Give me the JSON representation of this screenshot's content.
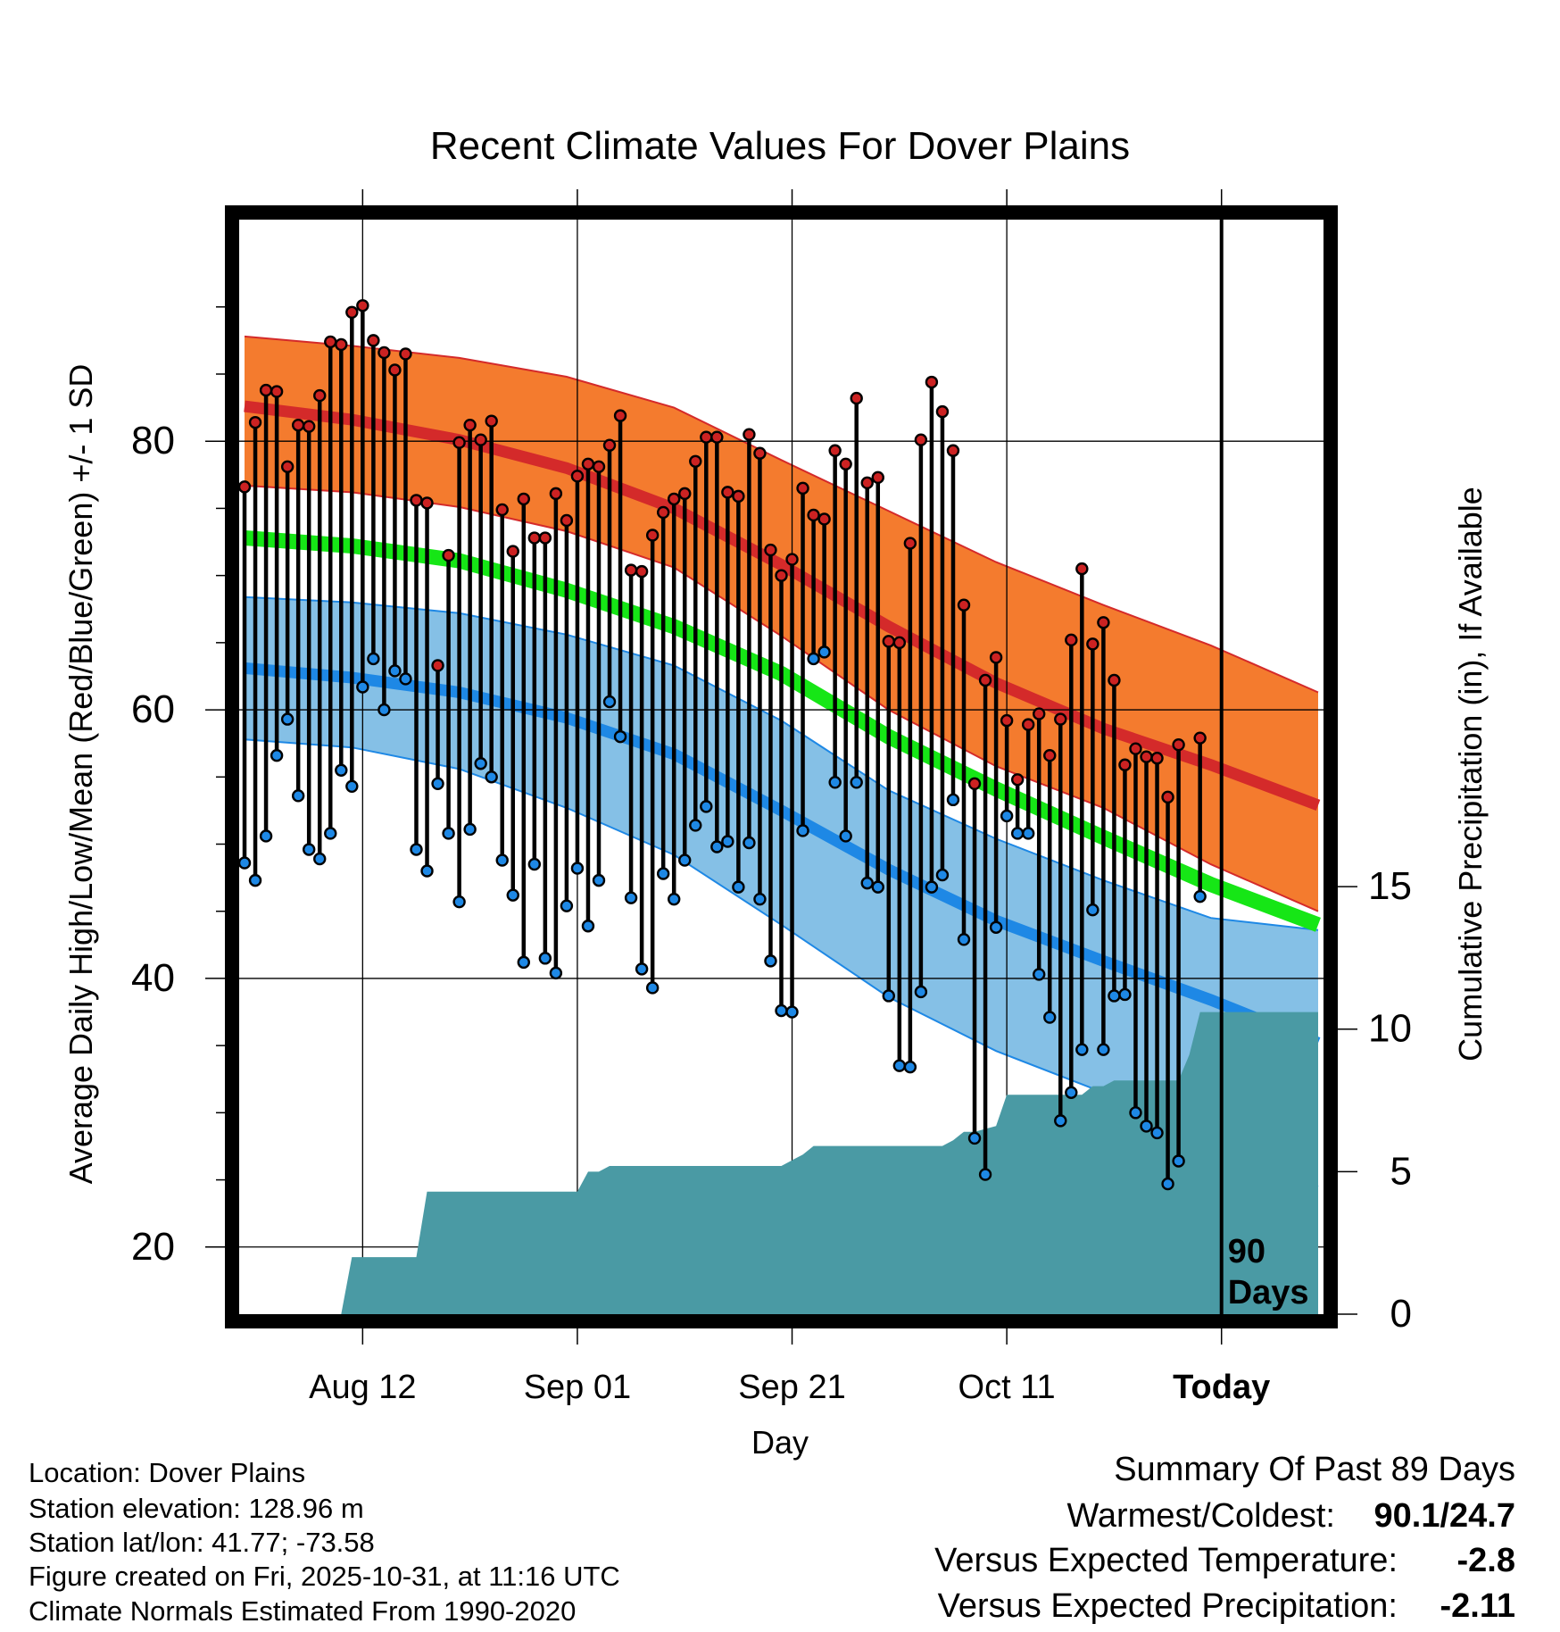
{
  "chart_data": {
    "type": "line",
    "title": "Recent Climate Values For Dover Plains",
    "xlabel": "Day",
    "ylabel_left": "Average Daily High/Low/Mean (Red/Blue/Green) +/- 1 SD",
    "ylabel_right": "Cumulative Precipitation (in), If Available",
    "x_ticks": [
      "Aug 12",
      "Sep 01",
      "Sep 21",
      "Oct 11",
      "Today"
    ],
    "x_tick_days": [
      12,
      32,
      52,
      72,
      92
    ],
    "x_range": [
      0.5,
      101.5
    ],
    "today_day": 92,
    "days_label": "90\nDays",
    "y_left_ticks": [
      20,
      40,
      60,
      80
    ],
    "y_left_range": [
      15,
      96.5
    ],
    "y_right_ticks": [
      0,
      5,
      10,
      15
    ],
    "y_right_range": [
      0,
      38.4
    ],
    "normals": {
      "days": [
        1,
        11,
        21,
        31,
        41,
        51,
        61,
        71,
        81,
        91,
        101
      ],
      "high_mean": [
        82.6,
        81.6,
        80.1,
        78.0,
        75.0,
        70.8,
        66.2,
        62.0,
        58.6,
        55.9,
        52.9
      ],
      "high_upper": [
        87.8,
        87.1,
        86.2,
        84.8,
        82.5,
        78.6,
        74.8,
        71.0,
        67.8,
        64.8,
        61.3
      ],
      "high_lower": [
        76.7,
        76.2,
        75.1,
        73.3,
        70.6,
        65.5,
        60.0,
        55.8,
        52.7,
        48.5,
        45.0
      ],
      "mean": [
        72.8,
        72.2,
        71.1,
        68.9,
        66.2,
        62.7,
        58.0,
        54.1,
        50.5,
        47.0,
        44.0
      ],
      "low_mean": [
        63.1,
        62.4,
        61.3,
        59.4,
        56.7,
        52.5,
        48.1,
        44.3,
        41.3,
        38.4,
        35.2
      ],
      "low_upper": [
        68.4,
        68.0,
        67.2,
        65.6,
        63.3,
        59.2,
        54.0,
        50.4,
        47.3,
        44.5,
        43.6
      ],
      "low_lower": [
        57.8,
        57.2,
        55.6,
        52.7,
        49.2,
        44.0,
        38.6,
        34.6,
        31.5,
        27.8,
        24.5
      ]
    },
    "series": [
      {
        "name": "Daily High",
        "color": "#cc2222",
        "start_day": 1,
        "values": [
          76.6,
          81.4,
          83.8,
          83.7,
          78.1,
          81.2,
          81.1,
          83.4,
          87.4,
          87.2,
          89.6,
          90.1,
          87.5,
          86.6,
          85.3,
          86.5,
          75.6,
          75.4,
          63.3,
          71.5,
          79.9,
          81.2,
          80.1,
          81.5,
          74.9,
          71.8,
          75.7,
          72.8,
          72.8,
          76.1,
          74.1,
          77.4,
          78.3,
          78.1,
          79.7,
          81.9,
          70.4,
          70.3,
          73.0,
          74.7,
          75.7,
          76.1,
          78.5,
          80.3,
          80.3,
          76.2,
          75.9,
          80.5,
          79.1,
          71.9,
          70.0,
          71.2,
          76.5,
          74.5,
          74.2,
          79.3,
          78.3,
          83.2,
          76.9,
          77.3,
          65.1,
          65.0,
          72.4,
          80.1,
          84.4,
          82.2,
          79.3,
          67.8,
          54.5,
          62.2,
          63.9,
          59.2,
          54.8,
          58.9,
          59.7,
          56.6,
          59.3,
          65.2,
          70.5,
          64.9,
          66.5,
          62.2,
          55.9,
          57.1,
          56.5,
          56.4,
          53.5,
          57.4,
          null,
          57.9
        ]
      },
      {
        "name": "Daily Low",
        "color": "#1e88e5",
        "start_day": 1,
        "values": [
          48.6,
          47.3,
          50.6,
          56.6,
          59.3,
          53.6,
          49.6,
          48.9,
          50.8,
          55.5,
          54.3,
          61.7,
          63.8,
          60.0,
          62.9,
          62.3,
          49.6,
          48.0,
          54.5,
          50.8,
          45.7,
          51.1,
          56.0,
          55.0,
          48.8,
          46.2,
          41.2,
          48.5,
          41.5,
          40.4,
          45.4,
          48.2,
          43.9,
          47.3,
          60.6,
          58.0,
          46.0,
          40.7,
          39.3,
          47.8,
          45.9,
          48.8,
          51.4,
          52.8,
          49.8,
          50.2,
          46.8,
          50.1,
          45.9,
          41.3,
          37.6,
          37.5,
          51.0,
          63.8,
          64.3,
          54.6,
          50.6,
          54.6,
          47.1,
          46.8,
          38.7,
          33.5,
          33.4,
          39.0,
          46.8,
          47.7,
          53.3,
          42.9,
          28.1,
          25.4,
          43.8,
          52.1,
          50.8,
          50.8,
          40.3,
          37.1,
          29.4,
          31.5,
          34.7,
          45.1,
          34.7,
          38.7,
          38.8,
          30.0,
          29.0,
          28.5,
          24.7,
          26.4,
          null,
          46.1
        ]
      },
      {
        "name": "Cumulative Precipitation",
        "color": "#4a9aa4",
        "days": [
          10,
          11,
          12,
          17,
          18,
          19,
          31,
          32,
          33,
          34,
          35,
          50,
          51,
          52,
          53,
          54,
          66,
          67,
          68,
          69,
          70,
          71,
          72,
          73,
          74,
          75,
          76,
          77,
          78,
          79,
          80,
          81,
          82,
          83,
          84,
          85,
          86,
          87,
          88,
          89,
          90,
          91,
          92,
          101
        ],
        "values": [
          0,
          2.0,
          2.0,
          2.0,
          4.3,
          4.3,
          4.3,
          4.3,
          5.0,
          5.0,
          5.2,
          5.2,
          5.2,
          5.4,
          5.6,
          5.9,
          5.9,
          6.1,
          6.4,
          6.4,
          6.5,
          6.6,
          7.7,
          7.7,
          7.7,
          7.7,
          7.7,
          7.7,
          7.7,
          7.7,
          8.0,
          8.0,
          8.2,
          8.2,
          8.2,
          8.2,
          8.2,
          8.2,
          8.2,
          9.1,
          10.6,
          10.6,
          10.6,
          10.6
        ]
      }
    ]
  },
  "info": {
    "location": "Location: Dover Plains",
    "elevation": "Station elevation: 128.96 m",
    "latlon": "Station lat/lon: 41.77; -73.58",
    "created": "Figure created on Fri, 2025-10-31, at 11:16 UTC",
    "normals_period": "Climate Normals Estimated From 1990-2020"
  },
  "summary": {
    "title": "Summary Of Past 89 Days",
    "warm_cold_label": "Warmest/Coldest:",
    "warm_cold_value": "90.1/24.7",
    "temp_label": "Versus Expected Temperature:",
    "temp_value": "-2.8",
    "temp_color": "#1e88e5",
    "precip_label": "Versus Expected Precipitation:",
    "precip_value": "-2.11",
    "precip_color": "#a0522d"
  }
}
